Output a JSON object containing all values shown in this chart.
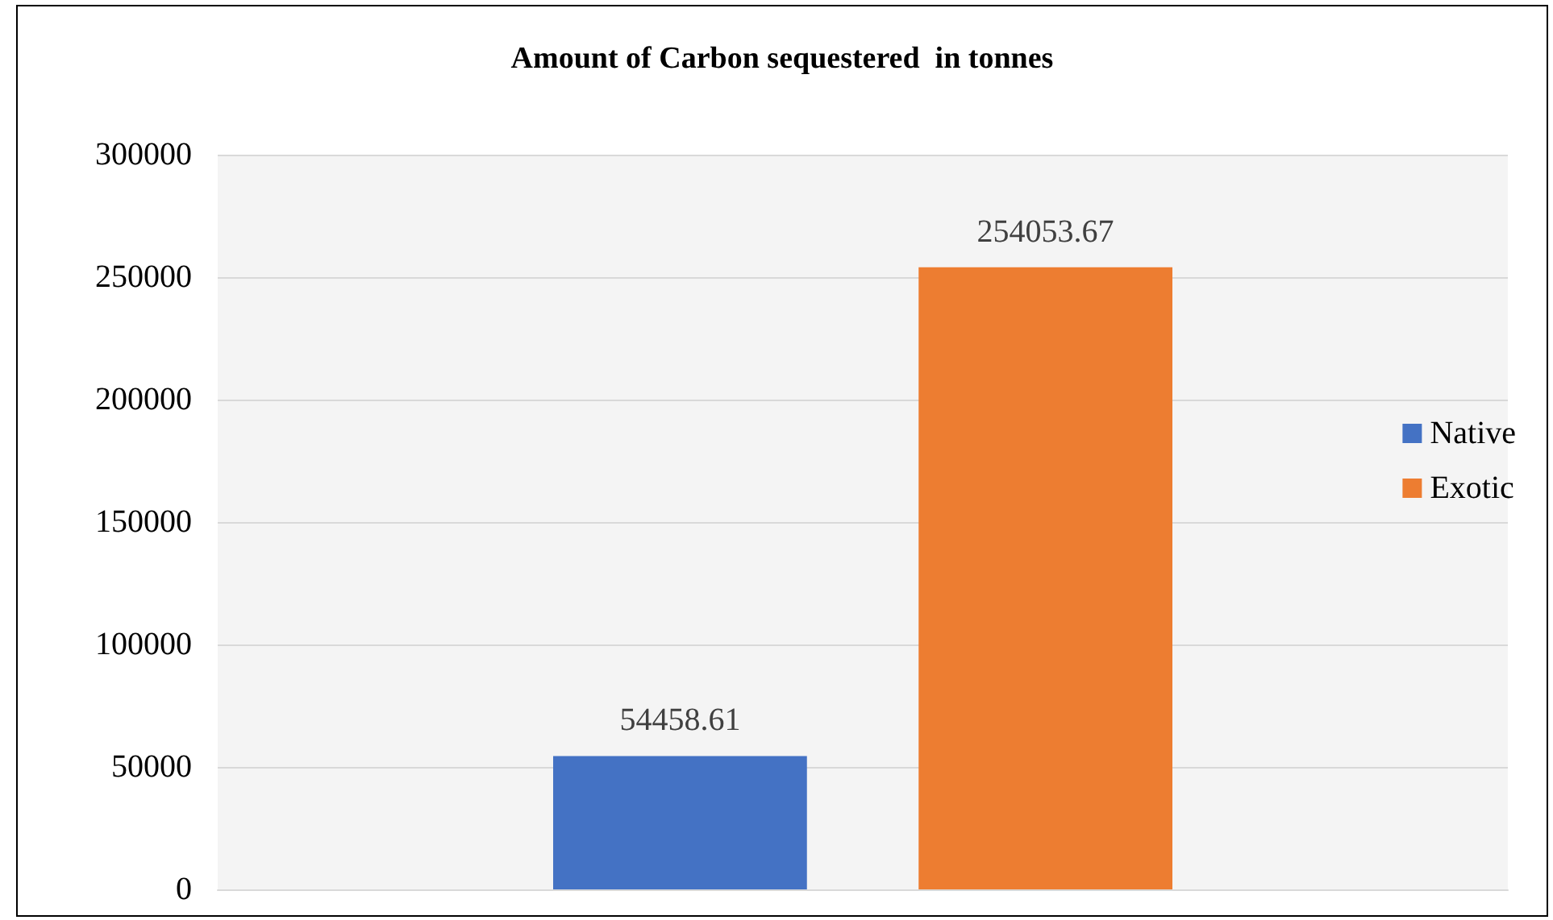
{
  "chart_data": {
    "type": "bar",
    "title": "Amount of Carbon sequestered  in tonnes",
    "categories": [
      null
    ],
    "series": [
      {
        "name": "Native",
        "color": "#4472c4",
        "values": [
          54458.61
        ]
      },
      {
        "name": "Exotic",
        "color": "#ed7d31",
        "values": [
          254053.67
        ]
      }
    ],
    "ylim": [
      0,
      300000
    ],
    "yticks": [
      0,
      50000,
      100000,
      150000,
      200000,
      250000,
      300000
    ],
    "grid": "y",
    "legend": "right",
    "data_labels": true
  }
}
